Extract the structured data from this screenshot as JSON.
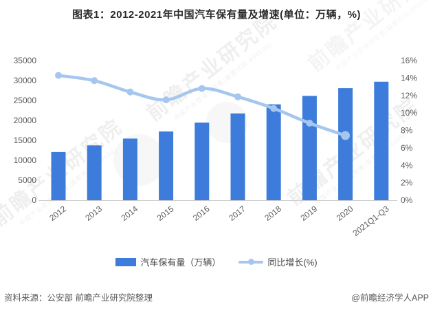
{
  "chart_data": {
    "type": "bar",
    "title": "图表1：2012-2021年中国汽车保有量及增速(单位：万辆，%)",
    "categories": [
      "2012",
      "2013",
      "2014",
      "2015",
      "2016",
      "2017",
      "2018",
      "2019",
      "2020",
      "2021Q1-Q3"
    ],
    "series": [
      {
        "name": "汽车保有量（万辆）",
        "type": "bar",
        "axis": "left",
        "values": [
          12089,
          13741,
          15447,
          17228,
          19440,
          21743,
          24028,
          26150,
          28087,
          29700
        ]
      },
      {
        "name": "同比增长(%)",
        "type": "line",
        "axis": "right",
        "values": [
          14.3,
          13.7,
          12.4,
          11.5,
          12.8,
          11.85,
          10.51,
          8.83,
          7.41,
          null
        ]
      }
    ],
    "left_axis": {
      "min": 0,
      "max": 35000,
      "step": 5000,
      "ticks": [
        0,
        5000,
        10000,
        15000,
        20000,
        25000,
        30000,
        35000
      ],
      "tick_labels": [
        "0",
        "5000",
        "10000",
        "15000",
        "20000",
        "25000",
        "30000",
        "35000"
      ]
    },
    "right_axis": {
      "min": 0,
      "max": 16,
      "step": 2,
      "ticks": [
        0,
        2,
        4,
        6,
        8,
        10,
        12,
        14,
        16
      ],
      "tick_labels": [
        "0%",
        "2%",
        "4%",
        "6%",
        "8%",
        "10%",
        "12%",
        "14%",
        "16%"
      ]
    },
    "grid": false,
    "legend_position": "bottom"
  },
  "footer": {
    "source": "资料来源：公安部 前瞻产业研究院整理",
    "credit": "@前瞻经济学人APP"
  },
  "watermark": {
    "main": "前瞻产业研究院",
    "sub": "中国产业咨询领导者(股票代码:839599)"
  },
  "colors": {
    "bar": "#3d7cdb",
    "line": "#a5c6ee",
    "axis_text": "#595959",
    "axis_line": "#cccccc",
    "title_text": "#2b2b2b"
  }
}
